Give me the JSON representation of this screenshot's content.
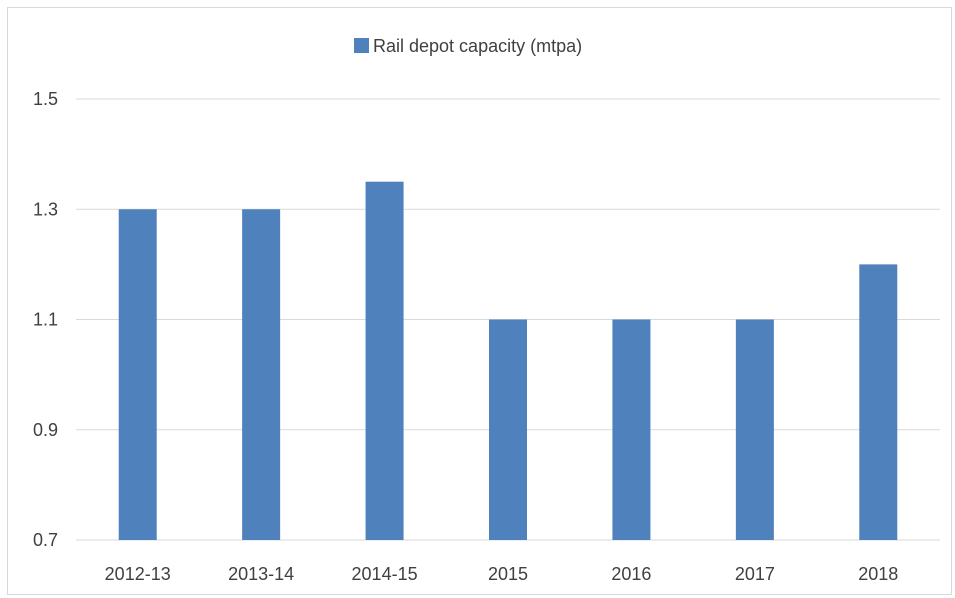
{
  "chart_data": {
    "type": "bar",
    "categories": [
      "2012-13",
      "2013-14",
      "2014-15",
      "2015",
      "2016",
      "2017",
      "2018"
    ],
    "series": [
      {
        "name": "Rail depot capacity (mtpa)",
        "values": [
          1.3,
          1.3,
          1.35,
          1.1,
          1.1,
          1.1,
          1.2
        ],
        "color": "#4f81bd"
      }
    ],
    "title": "",
    "xlabel": "",
    "ylabel": "",
    "ylim": [
      0.7,
      1.5
    ],
    "yticks": [
      "0.7",
      "0.9",
      "1.1",
      "1.3",
      "1.5"
    ],
    "grid": true,
    "legend_position": "top-center"
  },
  "colors": {
    "bar": "#4f81bd",
    "grid": "#d9d9d9",
    "text": "#404040"
  }
}
